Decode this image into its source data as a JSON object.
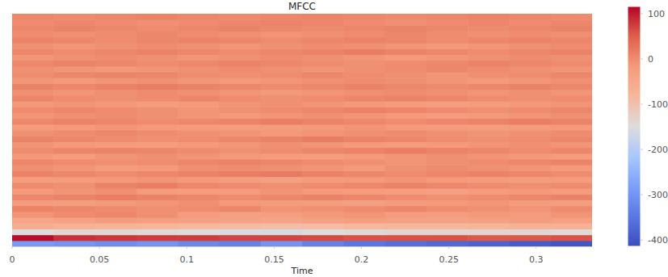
{
  "chart_data": {
    "type": "heatmap",
    "title": "MFCC",
    "x_label": "Time",
    "xlim": [
      0,
      0.332
    ],
    "xticks": [
      0,
      0.05,
      0.1,
      0.15,
      0.2,
      0.25,
      0.3
    ],
    "tick_labels": "x",
    "grid": false,
    "cells": [
      [
        -290,
        -300,
        -310,
        -300,
        -320,
        -330,
        -300,
        -330,
        -350,
        -360,
        -370,
        -380,
        -390,
        -400
      ],
      [
        110,
        85,
        80,
        75,
        75,
        70,
        70,
        65,
        60,
        60,
        60,
        55,
        55,
        60
      ],
      [
        -150,
        -140,
        -140,
        -145,
        -150,
        -155,
        -160,
        -150,
        -145,
        -140,
        -140,
        -135,
        -140,
        -145
      ],
      [
        -60,
        -70,
        -75,
        -80,
        -85,
        -90,
        -95,
        -90,
        -85,
        -80,
        -80,
        -75,
        -70,
        -70
      ],
      [
        -40,
        -30,
        -20,
        -25,
        -30,
        -35,
        -40,
        -30,
        -25,
        -30,
        -35,
        -30,
        -25,
        -30
      ],
      [
        -10,
        0,
        5,
        -5,
        -20,
        -30,
        -25,
        -15,
        -10,
        -20,
        -25,
        -15,
        -20,
        -10
      ],
      [
        10,
        5,
        0,
        -5,
        0,
        5,
        -10,
        -5,
        0,
        5,
        0,
        -5,
        -10,
        0
      ],
      [
        -20,
        -25,
        -15,
        -10,
        -5,
        -15,
        -20,
        -25,
        -30,
        -20,
        -15,
        -10,
        -20,
        -25
      ],
      [
        5,
        10,
        15,
        10,
        5,
        0,
        5,
        10,
        5,
        0,
        -5,
        0,
        5,
        10
      ],
      [
        -15,
        -10,
        -5,
        -20,
        -25,
        -20,
        -10,
        -15,
        -20,
        -25,
        -30,
        -20,
        -15,
        -20
      ],
      [
        0,
        -5,
        10,
        15,
        5,
        0,
        -5,
        0,
        5,
        10,
        5,
        0,
        -5,
        0
      ],
      [
        -25,
        -20,
        -15,
        -10,
        -15,
        -25,
        -30,
        -20,
        -15,
        -10,
        -15,
        -20,
        -25,
        -20
      ],
      [
        10,
        5,
        0,
        5,
        10,
        15,
        20,
        10,
        5,
        0,
        5,
        10,
        5,
        0
      ],
      [
        -5,
        -10,
        -20,
        -15,
        -5,
        0,
        -5,
        -10,
        -15,
        -5,
        0,
        -5,
        -10,
        -15
      ],
      [
        5,
        0,
        -5,
        0,
        5,
        10,
        5,
        0,
        -5,
        -10,
        -5,
        0,
        5,
        10
      ],
      [
        -15,
        -20,
        -10,
        -5,
        -10,
        -15,
        -20,
        -25,
        -15,
        -10,
        -5,
        -10,
        -15,
        -20
      ],
      [
        0,
        5,
        10,
        5,
        0,
        -5,
        0,
        5,
        10,
        15,
        10,
        5,
        0,
        5
      ],
      [
        -10,
        -15,
        -20,
        -25,
        -15,
        -10,
        -5,
        -10,
        -15,
        -20,
        -15,
        -10,
        -5,
        -10
      ],
      [
        10,
        5,
        0,
        -5,
        0,
        5,
        10,
        15,
        10,
        5,
        0,
        -5,
        0,
        5
      ],
      [
        -5,
        0,
        5,
        0,
        -5,
        -10,
        -15,
        -10,
        -5,
        0,
        -5,
        -10,
        -5,
        0
      ],
      [
        -20,
        -15,
        -10,
        -15,
        -20,
        -25,
        -20,
        -15,
        -10,
        -15,
        -20,
        -25,
        -20,
        -15
      ],
      [
        5,
        10,
        5,
        0,
        5,
        10,
        15,
        10,
        5,
        0,
        5,
        10,
        15,
        10
      ],
      [
        -10,
        -5,
        0,
        -5,
        -10,
        -15,
        -10,
        -5,
        -10,
        -15,
        -20,
        -15,
        -10,
        -5
      ],
      [
        0,
        5,
        0,
        -5,
        -10,
        -5,
        0,
        5,
        10,
        5,
        0,
        -5,
        0,
        5
      ],
      [
        -15,
        -10,
        -15,
        -20,
        -15,
        -10,
        -5,
        -10,
        -15,
        -20,
        -25,
        -20,
        -15,
        -10
      ],
      [
        5,
        0,
        -5,
        0,
        5,
        0,
        -5,
        0,
        5,
        10,
        5,
        0,
        -5,
        0
      ],
      [
        -5,
        -10,
        -5,
        0,
        -5,
        -10,
        -15,
        -10,
        -5,
        0,
        -5,
        -10,
        -5,
        -10
      ],
      [
        10,
        5,
        10,
        15,
        10,
        5,
        0,
        5,
        10,
        5,
        0,
        5,
        10,
        5
      ],
      [
        -10,
        -15,
        -10,
        -5,
        -10,
        -15,
        -10,
        -5,
        0,
        -5,
        -10,
        -15,
        -10,
        -5
      ],
      [
        0,
        5,
        10,
        5,
        0,
        -5,
        0,
        5,
        0,
        -5,
        -10,
        -5,
        0,
        5
      ],
      [
        -5,
        -10,
        -15,
        -10,
        -5,
        0,
        -5,
        -10,
        -5,
        0,
        5,
        0,
        -5,
        -10
      ],
      [
        5,
        10,
        5,
        0,
        5,
        10,
        5,
        0,
        -5,
        0,
        5,
        10,
        5,
        0
      ],
      [
        -10,
        -5,
        0,
        -5,
        -10,
        -5,
        0,
        -5,
        -10,
        -15,
        -10,
        -5,
        0,
        -5
      ],
      [
        5,
        0,
        5,
        10,
        5,
        0,
        5,
        10,
        15,
        10,
        5,
        0,
        5,
        10
      ],
      [
        -5,
        -10,
        -5,
        0,
        -5,
        -10,
        -5,
        0,
        -5,
        -10,
        -15,
        -10,
        -5,
        0
      ],
      [
        10,
        5,
        0,
        5,
        10,
        5,
        0,
        5,
        10,
        5,
        0,
        5,
        10,
        5
      ],
      [
        0,
        -5,
        0,
        5,
        0,
        -5,
        -10,
        -5,
        0,
        5,
        0,
        -5,
        0,
        -5
      ],
      [
        5,
        10,
        5,
        0,
        5,
        10,
        5,
        0,
        5,
        10,
        5,
        0,
        5,
        10
      ],
      [
        0,
        5,
        0,
        -5,
        0,
        5,
        10,
        5,
        0,
        -5,
        0,
        5,
        0,
        5
      ],
      [
        5,
        0,
        5,
        10,
        5,
        0,
        5,
        10,
        5,
        0,
        5,
        10,
        5,
        0
      ]
    ],
    "colorbar": {
      "range": [
        -414,
        116
      ],
      "ticks": [
        100,
        0,
        -100,
        -200,
        -300,
        -400
      ]
    }
  }
}
